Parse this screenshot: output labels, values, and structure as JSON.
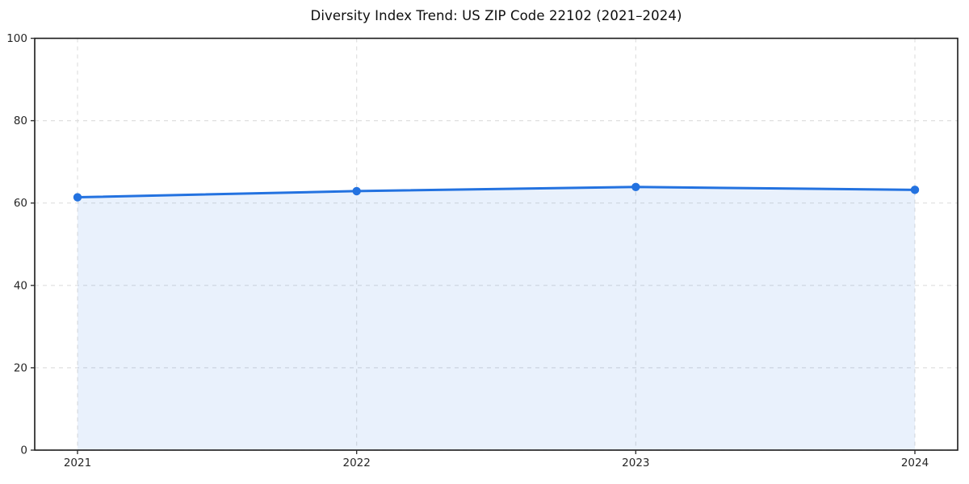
{
  "figure": {
    "title": "Diversity Index Trend: US ZIP Code 22102 (2021–2024)"
  },
  "chart_data": {
    "type": "line",
    "title": "Diversity Index Trend: US ZIP Code 22102 (2021–2024)",
    "categories": [
      "2021",
      "2022",
      "2023",
      "2024"
    ],
    "series": [
      {
        "name": "Diversity Index",
        "values": [
          61.4,
          62.9,
          63.9,
          63.2
        ]
      }
    ],
    "xlabel": "",
    "ylabel": "",
    "ylim": [
      0,
      100
    ],
    "yticks": [
      0,
      20,
      40,
      60,
      80,
      100
    ],
    "grid": true,
    "grid_style": "dashed",
    "legend_position": "none",
    "area_fill": true,
    "marker": "circle",
    "colors": {
      "line": "#2372e0",
      "marker": "#2372e0",
      "area_fill": "#2372e0",
      "area_opacity": 0.1,
      "grid": "#dfdfdf",
      "spine": "#1a1a1a",
      "tick_mark": "#333333",
      "tick_label": "#262626",
      "title": "#0d0d0d",
      "background": "#ffffff"
    }
  }
}
